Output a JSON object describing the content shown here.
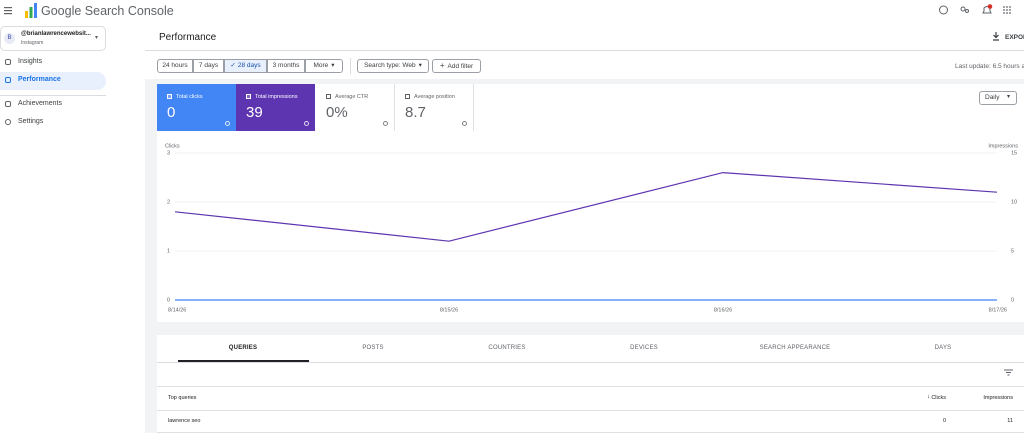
{
  "header": {
    "product": "Google Search Console"
  },
  "property": {
    "avatar": "B",
    "name": "@brianlawrencewebsit...",
    "sub": "Instagram"
  },
  "nav": [
    "Insights",
    "Performance",
    "Achievements",
    "Settings"
  ],
  "page_title": "Performance",
  "export": "EXPORT",
  "filters": {
    "ranges": [
      "24 hours",
      "7 days",
      "28 days",
      "3 months",
      "More"
    ],
    "search_type": "Search type: Web",
    "add_filter": "Add filter",
    "last_update": "Last update: 6.5 hours ago"
  },
  "metrics": [
    {
      "label": "Total clicks",
      "value": "0"
    },
    {
      "label": "Total impressions",
      "value": "39"
    },
    {
      "label": "Average CTR",
      "value": "0%"
    },
    {
      "label": "Average position",
      "value": "8.7"
    }
  ],
  "daily": "Daily",
  "chart_data": {
    "type": "line",
    "y_label": "Clicks",
    "y2_label": "Impressions",
    "categories": [
      "8/14/26",
      "8/15/26",
      "8/16/26",
      "8/17/26"
    ],
    "series": [
      {
        "name": "Clicks",
        "color": "#4285f4",
        "values": [
          0,
          0,
          0,
          0
        ]
      },
      {
        "name": "Impressions",
        "color": "#5e35b1",
        "axis": "y2",
        "values": [
          9,
          6,
          13,
          11
        ]
      }
    ],
    "ylim": [
      0,
      3
    ],
    "yticks": [
      0,
      1,
      2,
      3
    ],
    "y2lim": [
      0,
      15
    ],
    "y2ticks": [
      0,
      5,
      10,
      15
    ],
    "grid": true
  },
  "tabs": [
    "QUERIES",
    "POSTS",
    "COUNTRIES",
    "DEVICES",
    "SEARCH APPEARANCE",
    "DAYS"
  ],
  "table": {
    "headers": [
      "Top queries",
      "Clicks",
      "Impressions"
    ],
    "rows": [
      [
        "lawrence seo",
        "0",
        "11"
      ]
    ]
  }
}
